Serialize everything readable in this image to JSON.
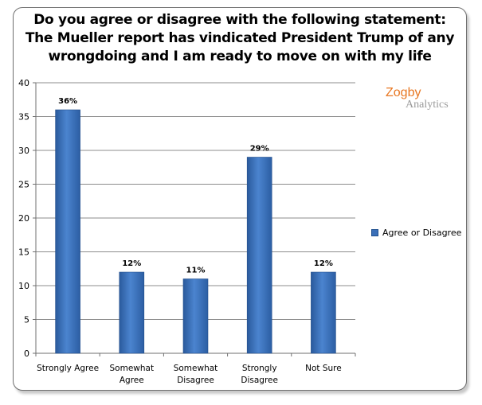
{
  "chart_data": {
    "type": "bar",
    "title_lines": [
      "Do you agree or disagree with the following statement:",
      "The Mueller report has vindicated President Trump of any",
      "wrongdoing and I am ready to move on with my life"
    ],
    "categories": [
      [
        "Strongly Agree"
      ],
      [
        "Somewhat",
        "Agree"
      ],
      [
        "Somewhat",
        "Disagree"
      ],
      [
        "Strongly",
        "Disagree"
      ],
      [
        "Not Sure"
      ]
    ],
    "series": [
      {
        "name": "Agree or Disagree",
        "values": [
          36,
          12,
          11,
          29,
          12
        ],
        "labels": [
          "36%",
          "12%",
          "11%",
          "29%",
          "12%"
        ]
      }
    ],
    "ylim": [
      0,
      40
    ],
    "yticks": [
      0,
      5,
      10,
      15,
      20,
      25,
      30,
      35,
      40
    ],
    "grid": true,
    "legend_position": "right",
    "bar_color": "#3a6fb8"
  },
  "logo": {
    "top": "Zogby",
    "bottom": "Analytics"
  }
}
